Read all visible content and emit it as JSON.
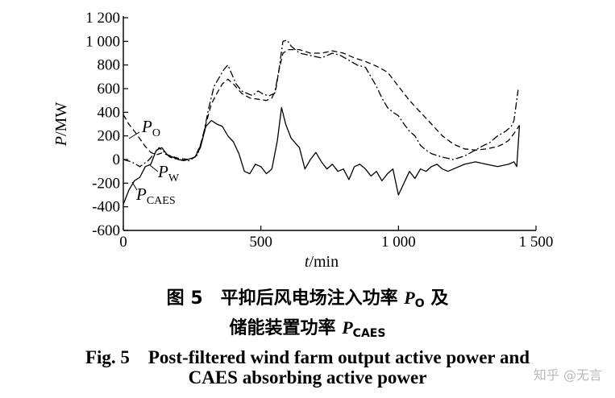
{
  "chart_data": {
    "type": "line",
    "xlabel": "t/min",
    "ylabel": "P/MW",
    "xlim": [
      0,
      1500
    ],
    "ylim": [
      -600,
      1200
    ],
    "x_ticks": [
      "0",
      "500",
      "1 000",
      "1 500"
    ],
    "x_tick_values": [
      0,
      500,
      1000,
      1500
    ],
    "y_ticks": [
      "1 200",
      "1 000",
      "800",
      "600",
      "400",
      "200",
      "0",
      "-200",
      "-400",
      "-600"
    ],
    "y_tick_values": [
      1200,
      1000,
      800,
      600,
      400,
      200,
      0,
      -200,
      -400,
      -600
    ],
    "grid": false,
    "series": [
      {
        "name": "P_O",
        "label_main": "P",
        "label_sub": "O",
        "style": "dashed",
        "points": [
          [
            0,
            380
          ],
          [
            20,
            300
          ],
          [
            40,
            240
          ],
          [
            60,
            175
          ],
          [
            80,
            110
          ],
          [
            100,
            60
          ],
          [
            120,
            40
          ],
          [
            140,
            55
          ],
          [
            160,
            40
          ],
          [
            200,
            10
          ],
          [
            240,
            0
          ],
          [
            260,
            20
          ],
          [
            280,
            120
          ],
          [
            300,
            300
          ],
          [
            320,
            470
          ],
          [
            340,
            560
          ],
          [
            360,
            640
          ],
          [
            380,
            680
          ],
          [
            400,
            640
          ],
          [
            430,
            560
          ],
          [
            460,
            520
          ],
          [
            490,
            510
          ],
          [
            520,
            500
          ],
          [
            540,
            520
          ],
          [
            555,
            600
          ],
          [
            565,
            750
          ],
          [
            580,
            900
          ],
          [
            600,
            930
          ],
          [
            640,
            930
          ],
          [
            680,
            900
          ],
          [
            720,
            900
          ],
          [
            760,
            920
          ],
          [
            800,
            900
          ],
          [
            840,
            860
          ],
          [
            880,
            830
          ],
          [
            920,
            790
          ],
          [
            960,
            740
          ],
          [
            1000,
            620
          ],
          [
            1040,
            500
          ],
          [
            1080,
            400
          ],
          [
            1120,
            300
          ],
          [
            1160,
            200
          ],
          [
            1200,
            130
          ],
          [
            1240,
            90
          ],
          [
            1280,
            80
          ],
          [
            1320,
            90
          ],
          [
            1360,
            110
          ],
          [
            1380,
            130
          ],
          [
            1400,
            160
          ],
          [
            1420,
            220
          ],
          [
            1440,
            290
          ]
        ]
      },
      {
        "name": "P_W",
        "label_main": "P",
        "label_sub": "W",
        "style": "dash-dot",
        "points": [
          [
            0,
            0
          ],
          [
            30,
            -20
          ],
          [
            60,
            -60
          ],
          [
            90,
            -10
          ],
          [
            110,
            40
          ],
          [
            130,
            100
          ],
          [
            150,
            60
          ],
          [
            170,
            20
          ],
          [
            200,
            0
          ],
          [
            240,
            -10
          ],
          [
            270,
            40
          ],
          [
            290,
            200
          ],
          [
            310,
            430
          ],
          [
            330,
            620
          ],
          [
            350,
            700
          ],
          [
            365,
            760
          ],
          [
            380,
            800
          ],
          [
            395,
            720
          ],
          [
            410,
            640
          ],
          [
            430,
            580
          ],
          [
            450,
            560
          ],
          [
            470,
            540
          ],
          [
            490,
            580
          ],
          [
            510,
            550
          ],
          [
            530,
            540
          ],
          [
            550,
            560
          ],
          [
            565,
            750
          ],
          [
            580,
            1000
          ],
          [
            595,
            1010
          ],
          [
            610,
            960
          ],
          [
            640,
            900
          ],
          [
            680,
            880
          ],
          [
            720,
            860
          ],
          [
            760,
            900
          ],
          [
            790,
            880
          ],
          [
            820,
            840
          ],
          [
            850,
            800
          ],
          [
            880,
            780
          ],
          [
            900,
            700
          ],
          [
            920,
            620
          ],
          [
            940,
            520
          ],
          [
            960,
            440
          ],
          [
            980,
            400
          ],
          [
            1000,
            370
          ],
          [
            1020,
            300
          ],
          [
            1040,
            240
          ],
          [
            1060,
            200
          ],
          [
            1080,
            120
          ],
          [
            1100,
            80
          ],
          [
            1120,
            50
          ],
          [
            1160,
            20
          ],
          [
            1200,
            0
          ],
          [
            1240,
            30
          ],
          [
            1280,
            80
          ],
          [
            1310,
            120
          ],
          [
            1330,
            140
          ],
          [
            1360,
            200
          ],
          [
            1390,
            240
          ],
          [
            1410,
            280
          ],
          [
            1420,
            330
          ],
          [
            1435,
            590
          ]
        ]
      },
      {
        "name": "P_CAES",
        "label_main": "P",
        "label_sub": "CAES",
        "style": "solid",
        "points": [
          [
            0,
            -380
          ],
          [
            10,
            -320
          ],
          [
            20,
            -260
          ],
          [
            40,
            -180
          ],
          [
            60,
            -150
          ],
          [
            80,
            -60
          ],
          [
            100,
            -40
          ],
          [
            120,
            80
          ],
          [
            140,
            100
          ],
          [
            160,
            40
          ],
          [
            180,
            20
          ],
          [
            200,
            0
          ],
          [
            220,
            -10
          ],
          [
            260,
            20
          ],
          [
            280,
            100
          ],
          [
            300,
            280
          ],
          [
            320,
            330
          ],
          [
            340,
            300
          ],
          [
            360,
            280
          ],
          [
            380,
            200
          ],
          [
            400,
            150
          ],
          [
            420,
            50
          ],
          [
            440,
            -100
          ],
          [
            460,
            -120
          ],
          [
            480,
            -40
          ],
          [
            500,
            -60
          ],
          [
            520,
            -120
          ],
          [
            540,
            -80
          ],
          [
            560,
            160
          ],
          [
            575,
            440
          ],
          [
            590,
            300
          ],
          [
            610,
            180
          ],
          [
            640,
            100
          ],
          [
            660,
            -80
          ],
          [
            680,
            0
          ],
          [
            700,
            60
          ],
          [
            720,
            -20
          ],
          [
            740,
            -80
          ],
          [
            760,
            -40
          ],
          [
            780,
            -100
          ],
          [
            800,
            -80
          ],
          [
            820,
            -170
          ],
          [
            840,
            -60
          ],
          [
            860,
            -40
          ],
          [
            880,
            -80
          ],
          [
            900,
            -140
          ],
          [
            920,
            -100
          ],
          [
            940,
            -180
          ],
          [
            960,
            -120
          ],
          [
            980,
            -80
          ],
          [
            1000,
            -300
          ],
          [
            1020,
            -200
          ],
          [
            1040,
            -100
          ],
          [
            1060,
            -160
          ],
          [
            1080,
            -80
          ],
          [
            1100,
            -100
          ],
          [
            1120,
            -60
          ],
          [
            1140,
            -40
          ],
          [
            1160,
            -80
          ],
          [
            1180,
            -100
          ],
          [
            1200,
            -80
          ],
          [
            1240,
            -40
          ],
          [
            1280,
            -20
          ],
          [
            1320,
            -40
          ],
          [
            1360,
            -60
          ],
          [
            1400,
            -40
          ],
          [
            1420,
            -20
          ],
          [
            1430,
            -60
          ],
          [
            1440,
            290
          ]
        ]
      }
    ]
  },
  "caption": {
    "cn_line1_prefix": "图 5　平抑后风电场注入功率 ",
    "cn_line1_var": "P",
    "cn_line1_sub": "O",
    "cn_line1_suffix": " 及",
    "cn_line2_prefix": "储能装置功率 ",
    "cn_line2_var": "P",
    "cn_line2_sub": "CAES",
    "en_line1": "Fig. 5　Post-filtered wind farm output active power and",
    "en_line2": "CAES absorbing active power"
  },
  "watermark": "知乎 @无言"
}
